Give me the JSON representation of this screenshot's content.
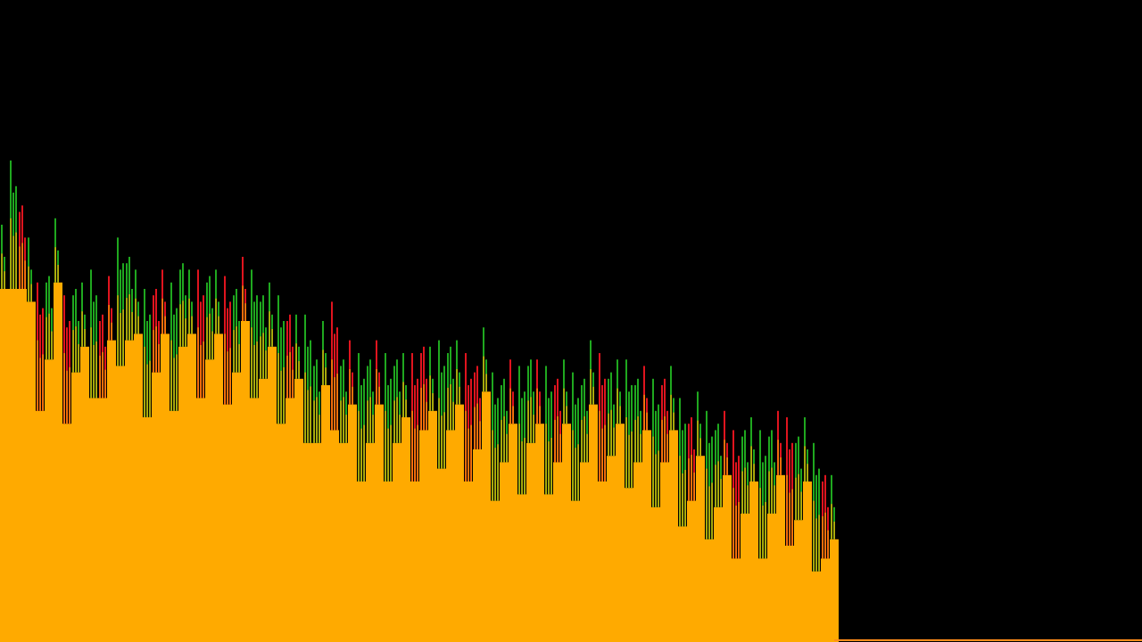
{
  "chart_data": {
    "type": "bar",
    "title": "",
    "xlabel": "",
    "ylabel": "",
    "ylim": [
      0,
      100
    ],
    "grid": false,
    "legend": "none",
    "background": "#000000",
    "colors": {
      "body": "#FFAA00",
      "spike_up": "#1FA81F",
      "spike_down": "#E0141E",
      "baseline": "#FF8C1A"
    },
    "series": [
      {
        "role": "peak",
        "values": [
          65,
          77,
          71,
          63,
          58,
          60,
          66,
          56,
          58,
          56,
          60,
          54,
          57,
          65,
          63,
          58,
          57,
          58,
          58,
          58,
          62,
          58,
          60,
          60,
          58,
          59,
          58,
          60,
          60,
          57,
          56,
          56,
          54,
          51,
          53,
          47,
          50,
          55,
          47,
          47,
          47,
          47,
          47,
          47,
          47,
          45,
          47,
          49,
          46,
          49,
          49,
          47,
          47,
          46,
          49,
          44,
          44,
          44,
          45,
          47,
          44,
          45,
          44,
          44,
          44,
          44,
          47,
          47,
          45,
          44,
          46,
          44,
          43,
          43,
          44,
          43,
          40,
          38,
          39,
          38,
          37,
          36,
          35,
          36,
          35,
          35,
          36,
          36,
          37,
          35,
          35,
          33,
          29,
          26
        ]
      },
      {
        "role": "body",
        "values": [
          55,
          55,
          55,
          53,
          36,
          44,
          56,
          34,
          42,
          46,
          38,
          38,
          47,
          43,
          47,
          48,
          35,
          42,
          48,
          36,
          46,
          48,
          38,
          44,
          48,
          37,
          42,
          50,
          38,
          41,
          46,
          34,
          38,
          41,
          31,
          31,
          40,
          33,
          31,
          37,
          25,
          31,
          37,
          25,
          31,
          35,
          25,
          33,
          36,
          27,
          33,
          37,
          25,
          30,
          39,
          22,
          28,
          34,
          23,
          31,
          34,
          23,
          28,
          34,
          22,
          28,
          37,
          25,
          29,
          34,
          24,
          28,
          33,
          21,
          28,
          33,
          18,
          22,
          29,
          16,
          21,
          26,
          13,
          20,
          25,
          13,
          20,
          26,
          15,
          19,
          25,
          11,
          13,
          16
        ]
      }
    ]
  }
}
